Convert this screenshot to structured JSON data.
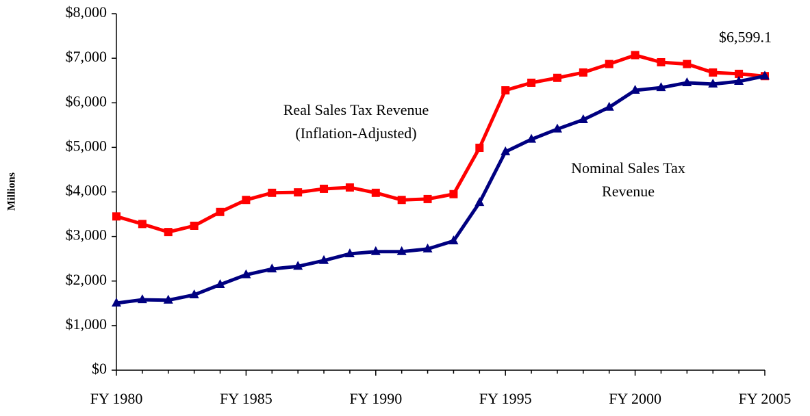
{
  "chart_data": {
    "type": "line",
    "y_label": "Millions",
    "categories": [
      "FY 1980",
      null,
      null,
      null,
      null,
      "FY 1985",
      null,
      null,
      null,
      null,
      "FY 1990",
      null,
      null,
      null,
      null,
      "FY 1995",
      null,
      null,
      null,
      null,
      "FY 2000",
      null,
      null,
      null,
      null,
      "FY 2005"
    ],
    "series": [
      {
        "name": "Real Sales Tax Revenue (Inflation-Adjusted)",
        "color": "#ff0000",
        "marker": "square",
        "values": [
          3450,
          3280,
          3100,
          3240,
          3550,
          3820,
          3980,
          3990,
          4070,
          4100,
          3980,
          3820,
          3840,
          3950,
          4990,
          6280,
          6450,
          6560,
          6680,
          6870,
          7070,
          6910,
          6870,
          6680,
          6650,
          6599.1
        ],
        "value_labels": [
          null,
          null,
          null,
          null,
          null,
          null,
          null,
          null,
          null,
          null,
          null,
          null,
          null,
          null,
          null,
          null,
          null,
          null,
          null,
          null,
          null,
          null,
          null,
          null,
          null,
          "$6,599.1"
        ]
      },
      {
        "name": "Nominal Sales Tax Revenue",
        "color": "#000080",
        "marker": "triangle",
        "values": [
          1505,
          1580,
          1570,
          1690,
          1920,
          2140,
          2270,
          2330,
          2460,
          2610,
          2660,
          2660,
          2720,
          2900,
          3760,
          4900,
          5180,
          5410,
          5620,
          5900,
          6280,
          6340,
          6450,
          6420,
          6480,
          6599.1
        ]
      }
    ],
    "ylim": [
      0,
      8000
    ],
    "yticks": [
      {
        "value": 0,
        "label": "$0"
      },
      {
        "value": 1000,
        "label": "$1,000"
      },
      {
        "value": 2000,
        "label": "$2,000"
      },
      {
        "value": 3000,
        "label": "$3,000"
      },
      {
        "value": 4000,
        "label": "$4,000"
      },
      {
        "value": 5000,
        "label": "$5,000"
      },
      {
        "value": 6000,
        "label": "$6,000"
      },
      {
        "value": 7000,
        "label": "$7,000"
      },
      {
        "value": 8000,
        "label": "$8,000"
      }
    ],
    "grid": false
  }
}
